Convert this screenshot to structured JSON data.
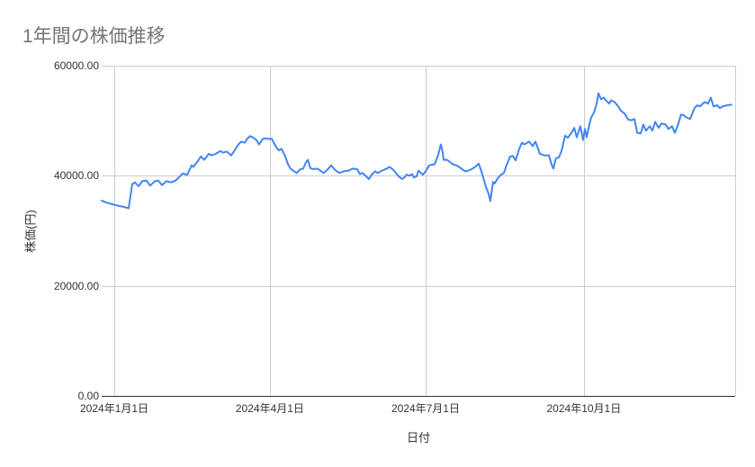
{
  "chart_data": {
    "type": "line",
    "title": "1年間の株価推移",
    "xlabel": "日付",
    "ylabel": "株価(円)",
    "legend": "none",
    "grid": {
      "show": true,
      "gridline_color": "#cccccc",
      "axis_line_color": "#333333"
    },
    "colors": {
      "title": "#757575",
      "tick_label": "#333333",
      "series_line": "#4285f4",
      "background": "#ffffff"
    },
    "y_axis": {
      "range": [
        0,
        60000
      ],
      "ticks": [
        {
          "value": 0,
          "label": "0.00"
        },
        {
          "value": 20000,
          "label": "20000.00"
        },
        {
          "value": 40000,
          "label": "40000.00"
        },
        {
          "value": 60000,
          "label": "60000.00"
        }
      ]
    },
    "x_axis": {
      "domain_days": [
        0,
        371
      ],
      "ticks": [
        {
          "day": 7.4,
          "label": "2024年1月1日"
        },
        {
          "day": 98.5,
          "label": "2024年4月1日"
        },
        {
          "day": 189.7,
          "label": "2024年7月1日"
        },
        {
          "day": 282.4,
          "label": "2024年10月1日"
        }
      ]
    },
    "series": [
      {
        "color": "#4285f4",
        "points": [
          [
            0,
            35500
          ],
          [
            2.1,
            35200
          ],
          [
            4.2,
            35000
          ],
          [
            7.9,
            34700
          ],
          [
            12.1,
            34400
          ],
          [
            15.8,
            34100
          ],
          [
            17.9,
            38500
          ],
          [
            19.5,
            38800
          ],
          [
            21.6,
            38100
          ],
          [
            23.7,
            39000
          ],
          [
            26.3,
            39100
          ],
          [
            28.4,
            38200
          ],
          [
            31.1,
            39000
          ],
          [
            33.2,
            39100
          ],
          [
            35.3,
            38300
          ],
          [
            37.9,
            39000
          ],
          [
            40.6,
            38800
          ],
          [
            43.2,
            39100
          ],
          [
            45.8,
            39900
          ],
          [
            47.4,
            40400
          ],
          [
            50.1,
            40200
          ],
          [
            52.7,
            41900
          ],
          [
            53.7,
            41600
          ],
          [
            56.4,
            42700
          ],
          [
            58,
            43500
          ],
          [
            60.1,
            42900
          ],
          [
            62.7,
            44000
          ],
          [
            64.3,
            43700
          ],
          [
            66.9,
            44000
          ],
          [
            69.5,
            44500
          ],
          [
            71.1,
            44200
          ],
          [
            73.2,
            44400
          ],
          [
            75.9,
            43700
          ],
          [
            77.4,
            44400
          ],
          [
            80.1,
            45700
          ],
          [
            81.7,
            46200
          ],
          [
            83.8,
            46000
          ],
          [
            85.4,
            46800
          ],
          [
            86.9,
            47200
          ],
          [
            89,
            46900
          ],
          [
            90.6,
            46500
          ],
          [
            92.2,
            45700
          ],
          [
            94.3,
            46700
          ],
          [
            95.9,
            46800
          ],
          [
            97.5,
            46700
          ],
          [
            99.6,
            46700
          ],
          [
            102.2,
            45200
          ],
          [
            103.8,
            44600
          ],
          [
            105.4,
            44900
          ],
          [
            107.5,
            43500
          ],
          [
            109.1,
            42100
          ],
          [
            110.6,
            41300
          ],
          [
            112.7,
            40800
          ],
          [
            114.3,
            40500
          ],
          [
            115.9,
            41100
          ],
          [
            118,
            41300
          ],
          [
            119.6,
            42400
          ],
          [
            120.7,
            42900
          ],
          [
            122.2,
            41400
          ],
          [
            123.8,
            41200
          ],
          [
            126.4,
            41300
          ],
          [
            128.6,
            40800
          ],
          [
            130.1,
            40500
          ],
          [
            132.8,
            41300
          ],
          [
            134.4,
            41900
          ],
          [
            136.5,
            41100
          ],
          [
            139.1,
            40500
          ],
          [
            141.7,
            40800
          ],
          [
            144.4,
            40900
          ],
          [
            147,
            41300
          ],
          [
            149.6,
            41200
          ],
          [
            151.2,
            40300
          ],
          [
            152.8,
            40500
          ],
          [
            154.9,
            39900
          ],
          [
            156.5,
            39400
          ],
          [
            158.1,
            40200
          ],
          [
            160.2,
            40800
          ],
          [
            161.7,
            40500
          ],
          [
            163.3,
            40800
          ],
          [
            165.4,
            41100
          ],
          [
            167,
            41300
          ],
          [
            168.6,
            41600
          ],
          [
            170.7,
            41100
          ],
          [
            172.3,
            40500
          ],
          [
            173.9,
            39900
          ],
          [
            176,
            39400
          ],
          [
            177.6,
            39800
          ],
          [
            178.6,
            40200
          ],
          [
            180.2,
            40000
          ],
          [
            181.8,
            40300
          ],
          [
            182.8,
            39700
          ],
          [
            184.4,
            39900
          ],
          [
            185.5,
            40900
          ],
          [
            187,
            40500
          ],
          [
            188.1,
            40200
          ],
          [
            189.7,
            40800
          ],
          [
            191.8,
            41900
          ],
          [
            193.4,
            42000
          ],
          [
            195,
            42100
          ],
          [
            197.1,
            43800
          ],
          [
            198.6,
            45700
          ],
          [
            199.7,
            44300
          ],
          [
            200.2,
            42900
          ],
          [
            202.3,
            42900
          ],
          [
            203.9,
            42500
          ],
          [
            205.5,
            42100
          ],
          [
            207.6,
            41900
          ],
          [
            209.2,
            41600
          ],
          [
            210.7,
            41300
          ],
          [
            212.9,
            40800
          ],
          [
            214.4,
            40900
          ],
          [
            216,
            41100
          ],
          [
            218.7,
            41600
          ],
          [
            220.8,
            42200
          ],
          [
            222.4,
            40800
          ],
          [
            223.4,
            39700
          ],
          [
            225,
            38000
          ],
          [
            226.6,
            36700
          ],
          [
            227.6,
            35400
          ],
          [
            229.2,
            38900
          ],
          [
            230.2,
            38600
          ],
          [
            231.8,
            39500
          ],
          [
            233.9,
            40200
          ],
          [
            235.5,
            40500
          ],
          [
            237.1,
            41900
          ],
          [
            239.2,
            43500
          ],
          [
            240.8,
            43600
          ],
          [
            242.4,
            42800
          ],
          [
            244.5,
            44900
          ],
          [
            246.1,
            46000
          ],
          [
            247.6,
            45700
          ],
          [
            250.3,
            46200
          ],
          [
            252.4,
            45400
          ],
          [
            254,
            46200
          ],
          [
            256.6,
            44000
          ],
          [
            259.2,
            43700
          ],
          [
            261.9,
            43700
          ],
          [
            263.4,
            42100
          ],
          [
            264.5,
            41300
          ],
          [
            266.1,
            43200
          ],
          [
            267.7,
            43300
          ],
          [
            269.3,
            44500
          ],
          [
            271.4,
            47300
          ],
          [
            273,
            46900
          ],
          [
            275.1,
            47800
          ],
          [
            276.7,
            48700
          ],
          [
            278.2,
            47000
          ],
          [
            280.3,
            49000
          ],
          [
            281.9,
            46500
          ],
          [
            283,
            48500
          ],
          [
            284,
            47000
          ],
          [
            285.6,
            49300
          ],
          [
            286.7,
            50600
          ],
          [
            288.3,
            51500
          ],
          [
            289.9,
            53100
          ],
          [
            290.9,
            55000
          ],
          [
            292.5,
            53900
          ],
          [
            294,
            54200
          ],
          [
            295.6,
            53600
          ],
          [
            297.2,
            53100
          ],
          [
            298.3,
            53700
          ],
          [
            300.4,
            53400
          ],
          [
            302.5,
            52600
          ],
          [
            304.1,
            51800
          ],
          [
            306.2,
            51300
          ],
          [
            308.3,
            50200
          ],
          [
            310.4,
            50100
          ],
          [
            312,
            50300
          ],
          [
            313.6,
            47800
          ],
          [
            315.7,
            47700
          ],
          [
            317.2,
            49300
          ],
          [
            318.8,
            48200
          ],
          [
            320.9,
            49000
          ],
          [
            322.5,
            48200
          ],
          [
            324.1,
            49800
          ],
          [
            326.2,
            48700
          ],
          [
            327.8,
            49500
          ],
          [
            330.3,
            49300
          ],
          [
            331.9,
            48500
          ],
          [
            334,
            49000
          ],
          [
            335.6,
            47800
          ],
          [
            337.2,
            49000
          ],
          [
            339.3,
            51100
          ],
          [
            340.9,
            51000
          ],
          [
            342.5,
            50600
          ],
          [
            344.6,
            50300
          ],
          [
            347.2,
            52300
          ],
          [
            348.8,
            52800
          ],
          [
            350.4,
            52600
          ],
          [
            353,
            53400
          ],
          [
            355.1,
            53100
          ],
          [
            356.7,
            54200
          ],
          [
            358.3,
            52600
          ],
          [
            360.4,
            52800
          ],
          [
            362,
            52300
          ],
          [
            363.6,
            52600
          ],
          [
            366.2,
            52800
          ],
          [
            368.8,
            52900
          ]
        ]
      }
    ]
  }
}
